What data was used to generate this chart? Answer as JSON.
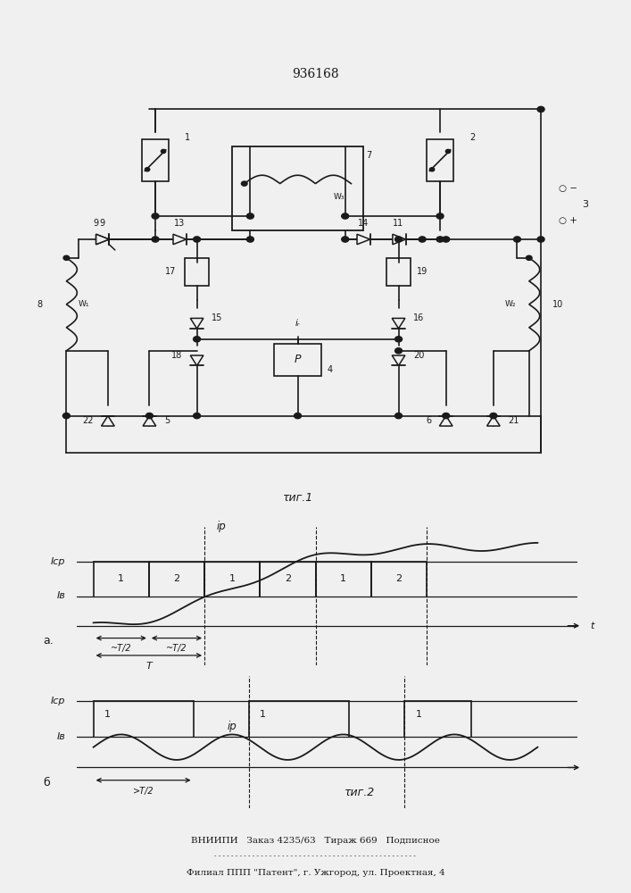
{
  "title": "936168",
  "fig1_label": "τиг.1",
  "fig2_label": "τиг.2",
  "label_a": "а.",
  "label_b": "б",
  "label_Icp_a": "Iср",
  "label_Ib_a": "Iв",
  "label_Icp_b": "Iср",
  "label_Ib_b": "Iв",
  "label_t": "t",
  "label_ip_top": "iр",
  "label_ip_bot": "iр",
  "label_T": "T",
  "label_T2a1": "~T/2",
  "label_T2a2": "~T/2",
  "label_T2b": ">T/2",
  "annotation_line1": "ВНИИПИ   Заказ 4235/63   Тираж 669   Подписное",
  "annotation_line2": "Филиал ППП \"Патент\", г. Ужгород, ул. Проектная, 4",
  "bg_color": "#f0f0f0",
  "line_color": "#1a1a1a"
}
